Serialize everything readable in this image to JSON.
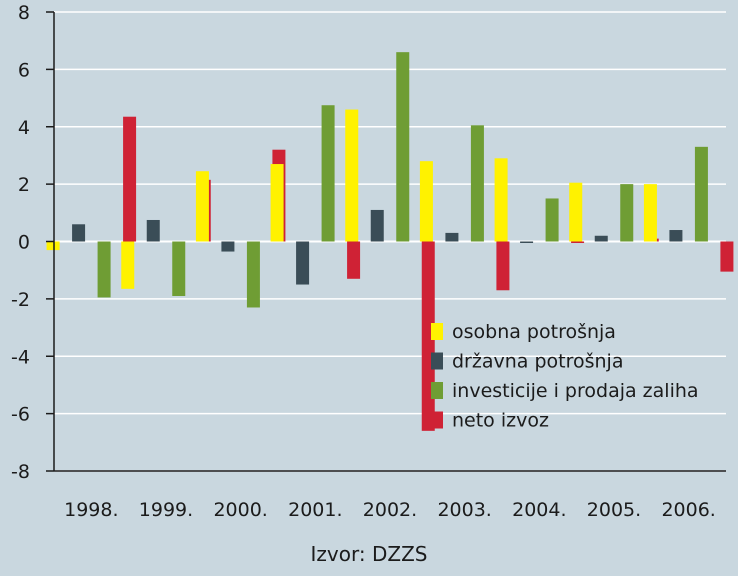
{
  "chart_data": {
    "type": "bar",
    "categories": [
      "1998.",
      "1999.",
      "2000.",
      "2001.",
      "2002.",
      "2003.",
      "2004.",
      "2005.",
      "2006."
    ],
    "series": [
      {
        "name": "osobna potrošnja",
        "color": "#fff200",
        "values": [
          -0.3,
          -1.65,
          2.45,
          2.7,
          4.6,
          2.8,
          2.9,
          2.05,
          2.0
        ]
      },
      {
        "name": "državna potrošnja",
        "color": "#3a4d57",
        "values": [
          0.6,
          0.75,
          -0.35,
          -1.5,
          1.1,
          0.3,
          -0.05,
          0.2,
          0.4
        ]
      },
      {
        "name": "investicije i prodaja zaliha",
        "color": "#6f9d34",
        "values": [
          -1.95,
          -1.9,
          -2.3,
          4.75,
          6.6,
          4.05,
          1.5,
          2.0,
          3.3
        ]
      },
      {
        "name": "neto izvoz",
        "color": "#cf2235",
        "values": [
          4.35,
          2.15,
          3.2,
          -1.3,
          -6.6,
          -1.7,
          -0.05,
          0.1,
          -1.05
        ]
      }
    ],
    "yticks": [
      "-8",
      "-6",
      "-4",
      "-2",
      "0",
      "2",
      "4",
      "6",
      "8"
    ],
    "ylim": [
      -8,
      8
    ],
    "grid": true,
    "legend_position": "bottom-right"
  },
  "source": "Izvor: DZZS"
}
